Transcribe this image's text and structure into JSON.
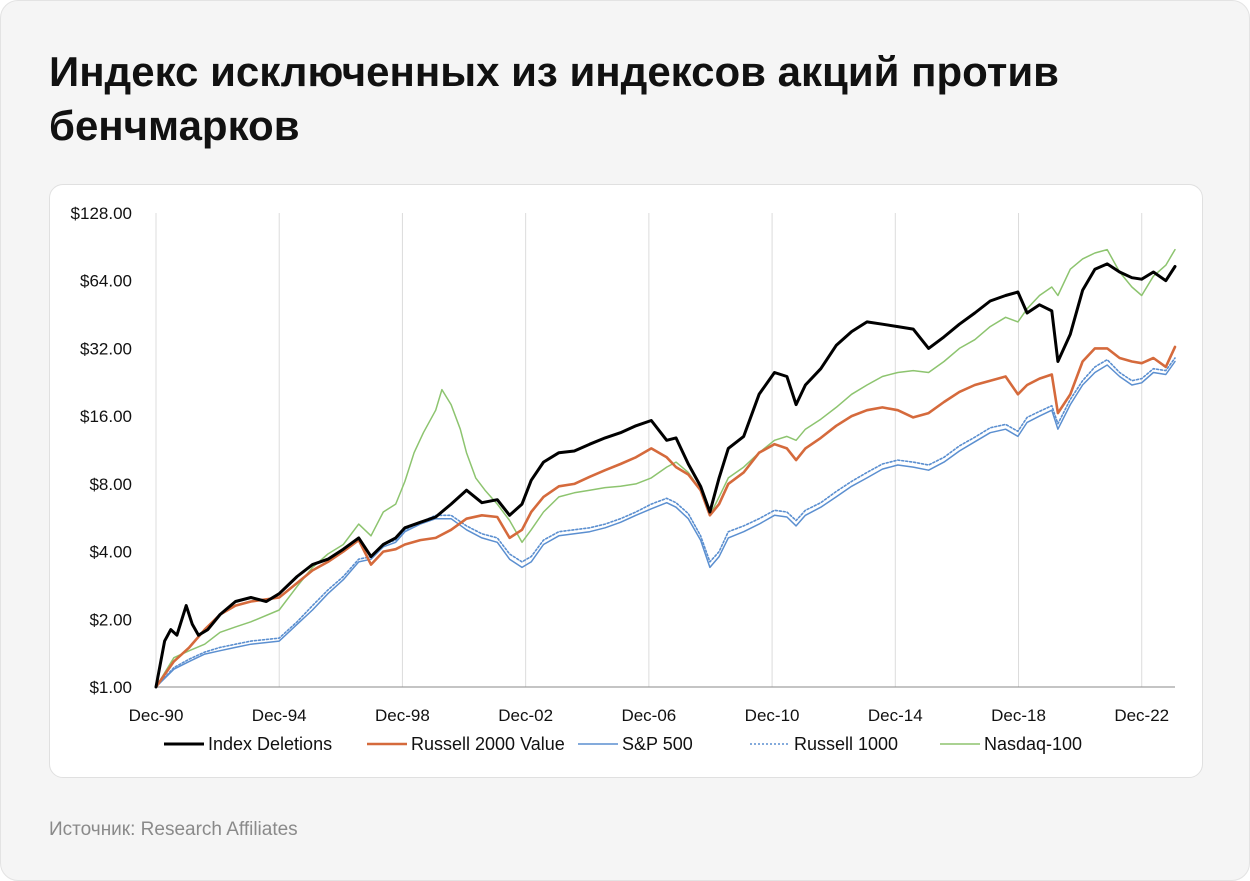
{
  "title": "Индекс исключенных из индексов акций против бенчмарков",
  "source": "Источник: Research Affiliates",
  "chart_data": {
    "type": "line",
    "title": "",
    "xlabel": "",
    "ylabel": "",
    "y_scale": "log2",
    "ylim": [
      1,
      128
    ],
    "y_ticks": [
      "$1.00",
      "$2.00",
      "$4.00",
      "$8.00",
      "$16.00",
      "$32.00",
      "$64.00",
      "$128.00"
    ],
    "y_tick_values": [
      1,
      2,
      4,
      8,
      16,
      32,
      64,
      128
    ],
    "x_range": [
      1990.92,
      2024.0
    ],
    "x_ticks": [
      "Dec-90",
      "Dec-94",
      "Dec-98",
      "Dec-02",
      "Dec-06",
      "Dec-10",
      "Dec-14",
      "Dec-18",
      "Dec-22"
    ],
    "x_tick_values": [
      1990.92,
      1994.92,
      1998.92,
      2002.92,
      2006.92,
      2010.92,
      2014.92,
      2018.92,
      2022.92
    ],
    "grid": "vertical",
    "legend_position": "bottom",
    "series": [
      {
        "name": "Index Deletions",
        "color": "#000000",
        "style": "solid-thick",
        "x": [
          1990.92,
          1991.2,
          1991.4,
          1991.6,
          1991.9,
          1992.1,
          1992.3,
          1992.6,
          1993.0,
          1993.5,
          1994.0,
          1994.5,
          1994.92,
          1995.5,
          1996.0,
          1996.5,
          1997.0,
          1997.5,
          1997.9,
          1998.3,
          1998.7,
          1999.0,
          1999.5,
          2000.0,
          2000.5,
          2001.0,
          2001.5,
          2002.0,
          2002.4,
          2002.8,
          2003.1,
          2003.5,
          2004.0,
          2004.5,
          2005.0,
          2005.5,
          2006.0,
          2006.5,
          2007.0,
          2007.5,
          2007.8,
          2008.2,
          2008.6,
          2008.9,
          2009.2,
          2009.5,
          2010.0,
          2010.5,
          2011.0,
          2011.4,
          2011.7,
          2012.0,
          2012.5,
          2013.0,
          2013.5,
          2014.0,
          2014.5,
          2015.0,
          2015.5,
          2016.0,
          2016.5,
          2017.0,
          2017.5,
          2018.0,
          2018.5,
          2018.9,
          2019.2,
          2019.6,
          2020.0,
          2020.2,
          2020.6,
          2021.0,
          2021.4,
          2021.8,
          2022.2,
          2022.6,
          2022.92,
          2023.3,
          2023.7,
          2024.0
        ],
        "values": [
          1.0,
          1.6,
          1.8,
          1.7,
          2.3,
          1.9,
          1.7,
          1.8,
          2.1,
          2.4,
          2.5,
          2.4,
          2.6,
          3.1,
          3.5,
          3.7,
          4.1,
          4.6,
          3.8,
          4.3,
          4.6,
          5.1,
          5.4,
          5.7,
          6.5,
          7.5,
          6.6,
          6.8,
          5.8,
          6.5,
          8.3,
          10.0,
          11.0,
          11.2,
          12.0,
          12.8,
          13.5,
          14.5,
          15.3,
          12.5,
          12.8,
          9.8,
          7.8,
          6.0,
          8.5,
          11.5,
          13.0,
          20.0,
          25.0,
          24.0,
          18.0,
          22.0,
          26.0,
          33.0,
          38.0,
          42.0,
          41.0,
          40.0,
          39.0,
          32.0,
          36.0,
          41.0,
          46.0,
          52.0,
          55.0,
          57.0,
          46.0,
          50.0,
          47.0,
          28.0,
          37.0,
          58.0,
          72.0,
          76.0,
          70.0,
          66.0,
          65.0,
          70.0,
          64.0,
          74.0
        ]
      },
      {
        "name": "Russell 2000 Value",
        "color": "#d56a3c",
        "style": "solid",
        "x": [
          1990.92,
          1991.5,
          1992.0,
          1992.5,
          1993.0,
          1993.5,
          1994.0,
          1994.92,
          1995.5,
          1996.0,
          1996.5,
          1997.0,
          1997.5,
          1997.9,
          1998.3,
          1998.7,
          1999.0,
          1999.5,
          2000.0,
          2000.5,
          2001.0,
          2001.5,
          2002.0,
          2002.4,
          2002.8,
          2003.1,
          2003.5,
          2004.0,
          2004.5,
          2005.0,
          2005.5,
          2006.0,
          2006.5,
          2007.0,
          2007.5,
          2007.8,
          2008.2,
          2008.6,
          2008.9,
          2009.2,
          2009.5,
          2010.0,
          2010.5,
          2011.0,
          2011.4,
          2011.7,
          2012.0,
          2012.5,
          2013.0,
          2013.5,
          2014.0,
          2014.5,
          2015.0,
          2015.5,
          2016.0,
          2016.5,
          2017.0,
          2017.5,
          2018.0,
          2018.5,
          2018.9,
          2019.2,
          2019.6,
          2020.0,
          2020.2,
          2020.6,
          2021.0,
          2021.4,
          2021.8,
          2022.2,
          2022.6,
          2022.92,
          2023.3,
          2023.7,
          2024.0
        ],
        "values": [
          1.0,
          1.3,
          1.5,
          1.8,
          2.1,
          2.3,
          2.4,
          2.5,
          2.9,
          3.3,
          3.6,
          4.0,
          4.5,
          3.5,
          4.0,
          4.1,
          4.3,
          4.5,
          4.6,
          5.0,
          5.6,
          5.8,
          5.7,
          4.6,
          5.0,
          6.0,
          7.0,
          7.8,
          8.0,
          8.6,
          9.2,
          9.8,
          10.5,
          11.5,
          10.5,
          9.5,
          8.8,
          7.5,
          5.8,
          6.5,
          8.0,
          9.0,
          11.0,
          12.0,
          11.5,
          10.2,
          11.5,
          12.8,
          14.5,
          16.0,
          17.0,
          17.5,
          17.0,
          15.8,
          16.5,
          18.5,
          20.5,
          22.0,
          23.0,
          24.0,
          20.0,
          22.0,
          23.5,
          24.5,
          16.5,
          20.0,
          28.0,
          32.0,
          32.0,
          29.0,
          28.0,
          27.5,
          29.0,
          26.5,
          32.5
        ]
      },
      {
        "name": "S&P 500",
        "color": "#5b8fd0",
        "style": "solid",
        "x": [
          1990.92,
          1991.5,
          1992.0,
          1992.5,
          1993.0,
          1993.5,
          1994.0,
          1994.92,
          1995.5,
          1996.0,
          1996.5,
          1997.0,
          1997.5,
          1997.9,
          1998.3,
          1998.7,
          1999.0,
          1999.5,
          2000.0,
          2000.5,
          2001.0,
          2001.5,
          2002.0,
          2002.4,
          2002.8,
          2003.1,
          2003.5,
          2004.0,
          2004.5,
          2005.0,
          2005.5,
          2006.0,
          2006.5,
          2007.0,
          2007.5,
          2007.8,
          2008.2,
          2008.6,
          2008.9,
          2009.2,
          2009.5,
          2010.0,
          2010.5,
          2011.0,
          2011.4,
          2011.7,
          2012.0,
          2012.5,
          2013.0,
          2013.5,
          2014.0,
          2014.5,
          2015.0,
          2015.5,
          2016.0,
          2016.5,
          2017.0,
          2017.5,
          2018.0,
          2018.5,
          2018.9,
          2019.2,
          2019.6,
          2020.0,
          2020.2,
          2020.6,
          2021.0,
          2021.4,
          2021.8,
          2022.2,
          2022.6,
          2022.92,
          2023.3,
          2023.7,
          2024.0
        ],
        "values": [
          1.0,
          1.2,
          1.3,
          1.4,
          1.45,
          1.5,
          1.55,
          1.6,
          1.9,
          2.2,
          2.6,
          3.0,
          3.6,
          3.7,
          4.2,
          4.4,
          4.9,
          5.3,
          5.6,
          5.6,
          5.0,
          4.6,
          4.4,
          3.7,
          3.4,
          3.6,
          4.3,
          4.7,
          4.8,
          4.9,
          5.1,
          5.4,
          5.8,
          6.2,
          6.6,
          6.3,
          5.6,
          4.5,
          3.4,
          3.8,
          4.6,
          4.9,
          5.3,
          5.8,
          5.7,
          5.2,
          5.8,
          6.3,
          7.0,
          7.8,
          8.5,
          9.3,
          9.7,
          9.5,
          9.2,
          10.0,
          11.2,
          12.3,
          13.5,
          14.0,
          13.0,
          15.0,
          16.0,
          17.0,
          14.0,
          18.0,
          22.0,
          25.0,
          27.0,
          24.0,
          22.0,
          22.5,
          25.0,
          24.5,
          28.0
        ]
      },
      {
        "name": "Russell 1000",
        "color": "#5b8fd0",
        "style": "dotted",
        "x": [
          1990.92,
          1991.5,
          1992.0,
          1992.5,
          1993.0,
          1993.5,
          1994.0,
          1994.92,
          1995.5,
          1996.0,
          1996.5,
          1997.0,
          1997.5,
          1997.9,
          1998.3,
          1998.7,
          1999.0,
          1999.5,
          2000.0,
          2000.5,
          2001.0,
          2001.5,
          2002.0,
          2002.4,
          2002.8,
          2003.1,
          2003.5,
          2004.0,
          2004.5,
          2005.0,
          2005.5,
          2006.0,
          2006.5,
          2007.0,
          2007.5,
          2007.8,
          2008.2,
          2008.6,
          2008.9,
          2009.2,
          2009.5,
          2010.0,
          2010.5,
          2011.0,
          2011.4,
          2011.7,
          2012.0,
          2012.5,
          2013.0,
          2013.5,
          2014.0,
          2014.5,
          2015.0,
          2015.5,
          2016.0,
          2016.5,
          2017.0,
          2017.5,
          2018.0,
          2018.5,
          2018.9,
          2019.2,
          2019.6,
          2020.0,
          2020.2,
          2020.6,
          2021.0,
          2021.4,
          2021.8,
          2022.2,
          2022.6,
          2022.92,
          2023.3,
          2023.7,
          2024.0
        ],
        "values": [
          1.0,
          1.22,
          1.33,
          1.43,
          1.5,
          1.55,
          1.6,
          1.65,
          1.95,
          2.3,
          2.7,
          3.1,
          3.7,
          3.8,
          4.3,
          4.5,
          5.0,
          5.4,
          5.8,
          5.8,
          5.2,
          4.8,
          4.6,
          3.9,
          3.6,
          3.8,
          4.5,
          4.9,
          5.0,
          5.1,
          5.3,
          5.6,
          6.0,
          6.5,
          6.9,
          6.6,
          5.9,
          4.7,
          3.6,
          4.0,
          4.9,
          5.2,
          5.6,
          6.1,
          6.0,
          5.5,
          6.1,
          6.6,
          7.4,
          8.2,
          9.0,
          9.8,
          10.2,
          10.0,
          9.7,
          10.5,
          11.8,
          12.9,
          14.2,
          14.7,
          13.7,
          15.8,
          16.8,
          17.8,
          14.8,
          19.0,
          23.0,
          26.5,
          28.5,
          25.0,
          23.0,
          23.5,
          26.0,
          25.5,
          29.0
        ]
      },
      {
        "name": "Nasdaq-100",
        "color": "#8dc46f",
        "style": "solid",
        "x": [
          1990.92,
          1991.5,
          1992.0,
          1992.5,
          1993.0,
          1993.5,
          1994.0,
          1994.92,
          1995.5,
          1996.0,
          1996.5,
          1997.0,
          1997.5,
          1997.9,
          1998.3,
          1998.7,
          1999.0,
          1999.3,
          1999.6,
          2000.0,
          2000.2,
          2000.5,
          2000.8,
          2001.0,
          2001.3,
          2001.6,
          2002.0,
          2002.4,
          2002.8,
          2003.1,
          2003.5,
          2004.0,
          2004.5,
          2005.0,
          2005.5,
          2006.0,
          2006.5,
          2007.0,
          2007.5,
          2007.8,
          2008.2,
          2008.6,
          2008.9,
          2009.2,
          2009.5,
          2010.0,
          2010.5,
          2011.0,
          2011.4,
          2011.7,
          2012.0,
          2012.5,
          2013.0,
          2013.5,
          2014.0,
          2014.5,
          2015.0,
          2015.5,
          2016.0,
          2016.5,
          2017.0,
          2017.5,
          2018.0,
          2018.5,
          2018.9,
          2019.2,
          2019.6,
          2020.0,
          2020.2,
          2020.6,
          2021.0,
          2021.4,
          2021.8,
          2022.2,
          2022.6,
          2022.92,
          2023.3,
          2023.7,
          2024.0
        ],
        "values": [
          1.0,
          1.35,
          1.45,
          1.55,
          1.75,
          1.85,
          1.95,
          2.2,
          2.8,
          3.4,
          3.9,
          4.3,
          5.3,
          4.7,
          6.0,
          6.5,
          8.2,
          11.0,
          13.5,
          17.0,
          21.0,
          18.0,
          14.0,
          11.0,
          8.5,
          7.5,
          6.5,
          5.5,
          4.4,
          5.0,
          6.0,
          7.0,
          7.3,
          7.5,
          7.7,
          7.8,
          8.0,
          8.5,
          9.5,
          10.0,
          9.0,
          7.5,
          5.8,
          7.0,
          8.5,
          9.5,
          11.0,
          12.5,
          13.0,
          12.5,
          14.0,
          15.5,
          17.5,
          20.0,
          22.0,
          24.0,
          25.0,
          25.5,
          25.0,
          28.0,
          32.0,
          35.0,
          40.0,
          44.0,
          42.0,
          48.0,
          55.0,
          60.0,
          55.0,
          72.0,
          80.0,
          85.0,
          88.0,
          70.0,
          60.0,
          55.0,
          67.0,
          75.0,
          88.0
        ]
      }
    ]
  }
}
